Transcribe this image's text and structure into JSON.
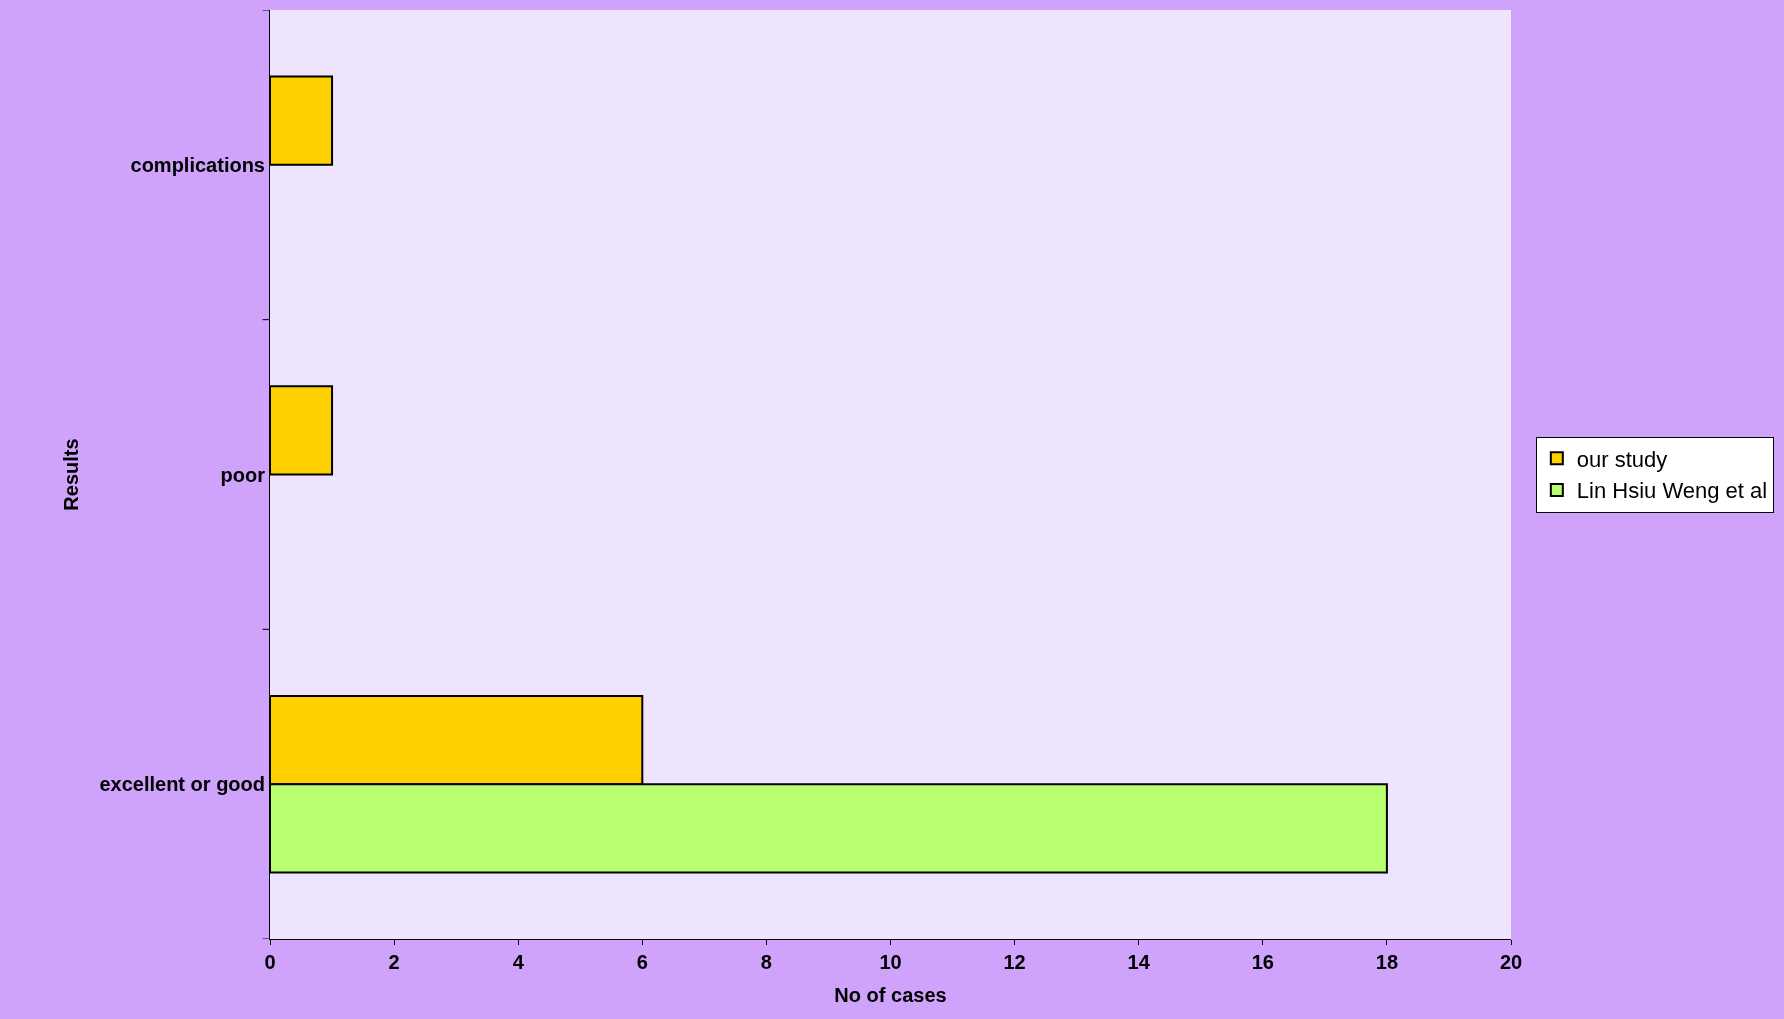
{
  "chart_data": {
    "type": "bar",
    "orientation": "horizontal",
    "xlabel": "No of cases",
    "ylabel": "Results",
    "categories": [
      "complications",
      "poor",
      "excellent or good"
    ],
    "series": [
      {
        "name": "our study",
        "color": "#ffd000",
        "values": [
          1,
          1,
          6
        ]
      },
      {
        "name": "Lin Hsiu Weng et al",
        "color": "#b8ff70",
        "values": [
          null,
          null,
          18
        ]
      }
    ],
    "xlim": [
      0,
      20
    ],
    "xticks": [
      0,
      2,
      4,
      6,
      8,
      10,
      12,
      14,
      16,
      18,
      20
    ],
    "grid": false,
    "legend": "right"
  }
}
